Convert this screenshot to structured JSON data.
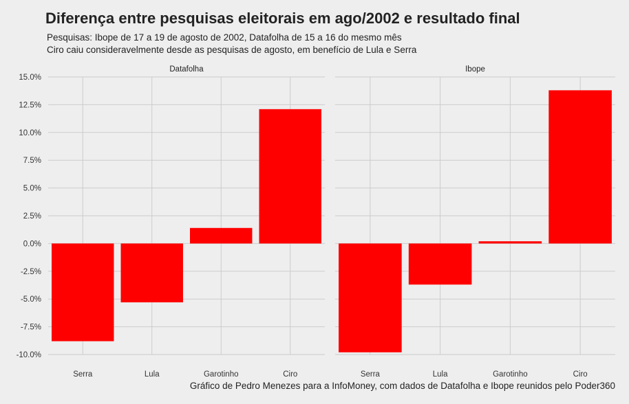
{
  "title": "Diferença entre pesquisas eleitorais em ago/2002 e resultado final",
  "subtitle_line1": "Pesquisas: Ibope de 17 a 19 de agosto de 2002, Datafolha de 15 a 16 do mesmo mês",
  "subtitle_line2": "Ciro caiu consideravelmente desde as pesquisas de agosto, em benefício de Lula e Serra",
  "caption": "Gráfico de Pedro Menezes para a InfoMoney, com dados de Datafolha e Ibope reunidos pelo Poder360",
  "colors": {
    "bar": "#ff0000",
    "grid": "#cbcbcb",
    "background": "#eeeeee"
  },
  "chart_data": {
    "type": "bar",
    "categories": [
      "Serra",
      "Lula",
      "Garotinho",
      "Ciro"
    ],
    "panels": [
      {
        "name": "Datafolha",
        "values": [
          -8.8,
          -5.3,
          1.4,
          12.1
        ]
      },
      {
        "name": "Ibope",
        "values": [
          -9.8,
          -3.7,
          0.2,
          13.8
        ]
      }
    ],
    "ylim": [
      -10,
      15
    ],
    "yticks": [
      15,
      12.5,
      10,
      7.5,
      5,
      2.5,
      0,
      -2.5,
      -5,
      -7.5,
      -10
    ],
    "ytick_labels": [
      "15.0%",
      "12.5%",
      "10.0%",
      "7.5%",
      "5.0%",
      "2.5%",
      "0.0%",
      "-2.5%",
      "-5.0%",
      "-7.5%",
      "-10.0%"
    ],
    "xlabel": "",
    "ylabel": ""
  }
}
